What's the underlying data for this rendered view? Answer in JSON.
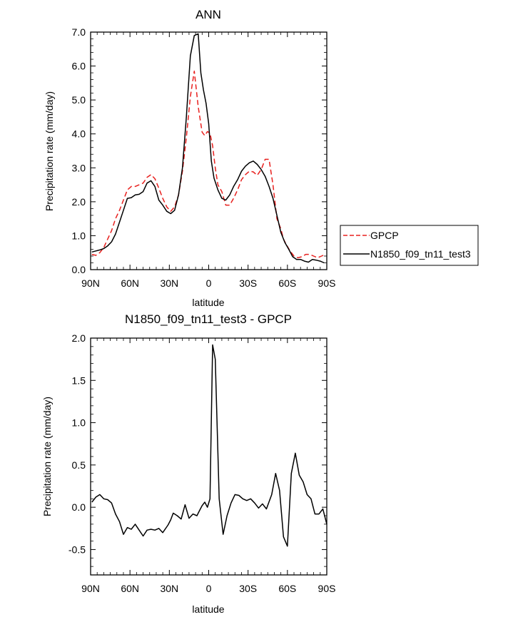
{
  "chart_data": [
    {
      "type": "line",
      "title": "ANN",
      "xlabel": "latitude",
      "ylabel": "Precipitation rate (mm/day)",
      "xlim": [
        90,
        -90
      ],
      "ylim": [
        0,
        7
      ],
      "x_tick_values": [
        90,
        60,
        30,
        0,
        -30,
        -60,
        -90
      ],
      "x_tick_labels": [
        "90N",
        "60N",
        "30N",
        "0",
        "30S",
        "60S",
        "90S"
      ],
      "y_tick_values": [
        0,
        1,
        2,
        3,
        4,
        5,
        6,
        7
      ],
      "y_tick_labels": [
        "0.0",
        "1.0",
        "2.0",
        "3.0",
        "4.0",
        "5.0",
        "6.0",
        "7.0"
      ],
      "legend_position": "right",
      "series": [
        {
          "name": "GPCP",
          "color": "#e8201e",
          "dash": "dashed",
          "x": [
            89,
            86,
            83,
            80,
            77,
            74,
            71,
            68,
            65,
            62,
            59,
            56,
            53,
            50,
            47,
            44,
            41,
            38,
            35,
            32,
            29,
            26,
            23,
            20,
            17,
            14,
            11,
            8,
            5,
            3,
            1,
            -1,
            -3,
            -5,
            -7,
            -10,
            -13,
            -16,
            -19,
            -22,
            -25,
            -28,
            -31,
            -34,
            -37,
            -40,
            -43,
            -46,
            -49,
            -52,
            -55,
            -57,
            -59,
            -62,
            -65,
            -68,
            -71,
            -74,
            -77,
            -80,
            -83,
            -86,
            -89
          ],
          "values": [
            0.45,
            0.42,
            0.5,
            0.65,
            0.9,
            1.15,
            1.5,
            1.75,
            2.05,
            2.35,
            2.45,
            2.45,
            2.5,
            2.55,
            2.72,
            2.8,
            2.68,
            2.4,
            2.1,
            1.85,
            1.72,
            1.85,
            2.2,
            2.9,
            3.9,
            5.1,
            5.85,
            4.8,
            4.05,
            3.95,
            4.07,
            4.02,
            3.65,
            3.0,
            2.5,
            2.3,
            1.9,
            1.9,
            2.1,
            2.35,
            2.65,
            2.8,
            2.9,
            2.88,
            2.78,
            2.95,
            3.25,
            3.25,
            2.5,
            1.5,
            1.2,
            0.9,
            0.75,
            0.55,
            0.4,
            0.35,
            0.38,
            0.45,
            0.45,
            0.4,
            0.35,
            0.4,
            0.45
          ]
        },
        {
          "name": "N1850_f09_tn11_test3",
          "color": "#000000",
          "dash": "solid",
          "x": [
            89,
            86,
            83,
            80,
            77,
            74,
            71,
            68,
            65,
            62,
            59,
            56,
            53,
            50,
            47,
            44,
            41,
            38,
            35,
            32,
            29,
            26,
            23,
            20,
            17,
            14,
            11,
            8,
            6,
            4,
            2,
            0,
            -2,
            -4,
            -7,
            -10,
            -13,
            -16,
            -19,
            -22,
            -25,
            -28,
            -31,
            -34,
            -37,
            -40,
            -43,
            -46,
            -49,
            -52,
            -55,
            -58,
            -61,
            -64,
            -67,
            -70,
            -73,
            -76,
            -79,
            -82,
            -85,
            -88
          ],
          "values": [
            0.52,
            0.55,
            0.58,
            0.62,
            0.7,
            0.82,
            1.05,
            1.4,
            1.75,
            2.1,
            2.12,
            2.2,
            2.22,
            2.3,
            2.55,
            2.62,
            2.45,
            2.05,
            1.9,
            1.72,
            1.65,
            1.75,
            2.2,
            3.0,
            4.5,
            6.3,
            6.9,
            6.95,
            5.8,
            5.3,
            4.9,
            4.3,
            3.2,
            2.7,
            2.35,
            2.1,
            2.05,
            2.2,
            2.45,
            2.65,
            2.9,
            3.05,
            3.15,
            3.2,
            3.1,
            2.95,
            2.75,
            2.45,
            2.1,
            1.6,
            1.1,
            0.8,
            0.6,
            0.38,
            0.3,
            0.3,
            0.25,
            0.22,
            0.3,
            0.28,
            0.25,
            0.2
          ]
        }
      ]
    },
    {
      "type": "line",
      "title": "N1850_f09_tn11_test3 - GPCP",
      "xlabel": "latitude",
      "ylabel": "Precipitation rate (mm/day)",
      "xlim": [
        90,
        -90
      ],
      "ylim": [
        -0.8,
        2.0
      ],
      "x_tick_values": [
        90,
        60,
        30,
        0,
        -30,
        -60,
        -90
      ],
      "x_tick_labels": [
        "90N",
        "60N",
        "30N",
        "0",
        "30S",
        "60S",
        "90S"
      ],
      "y_tick_values": [
        -0.5,
        0.0,
        0.5,
        1.0,
        1.5,
        2.0
      ],
      "y_tick_labels": [
        "-0.5",
        "0.0",
        "0.5",
        "1.0",
        "1.5",
        "2.0"
      ],
      "series": [
        {
          "name": "N1850_f09_tn11_test3 - GPCP",
          "color": "#000000",
          "dash": "solid",
          "x": [
            89,
            86,
            83,
            80,
            77,
            74,
            71,
            68,
            65,
            62,
            59,
            56,
            53,
            50,
            47,
            44,
            41,
            38,
            35,
            31,
            29,
            27,
            24,
            21,
            18,
            15,
            12,
            9,
            7,
            5,
            3,
            1,
            -1,
            -3,
            -5,
            -8,
            -11,
            -14,
            -17,
            -20,
            -23,
            -26,
            -29,
            -32,
            -35,
            -38,
            -41,
            -44,
            -48,
            -51,
            -54,
            -57,
            -60,
            -63,
            -66,
            -69,
            -72,
            -75,
            -78,
            -81,
            -84,
            -87,
            -90
          ],
          "values": [
            0.06,
            0.12,
            0.15,
            0.1,
            0.09,
            0.05,
            -0.08,
            -0.17,
            -0.32,
            -0.24,
            -0.26,
            -0.2,
            -0.27,
            -0.34,
            -0.27,
            -0.26,
            -0.27,
            -0.25,
            -0.3,
            -0.21,
            -0.15,
            -0.07,
            -0.1,
            -0.14,
            0.03,
            -0.13,
            -0.08,
            -0.1,
            -0.04,
            0.02,
            0.06,
            0.0,
            0.1,
            1.92,
            1.75,
            0.1,
            -0.32,
            -0.1,
            0.05,
            0.15,
            0.14,
            0.1,
            0.08,
            0.1,
            0.05,
            -0.01,
            0.04,
            -0.02,
            0.15,
            0.4,
            0.2,
            -0.35,
            -0.46,
            0.4,
            0.64,
            0.38,
            0.3,
            0.15,
            0.1,
            -0.08,
            -0.08,
            -0.02,
            -0.2
          ]
        }
      ]
    }
  ]
}
